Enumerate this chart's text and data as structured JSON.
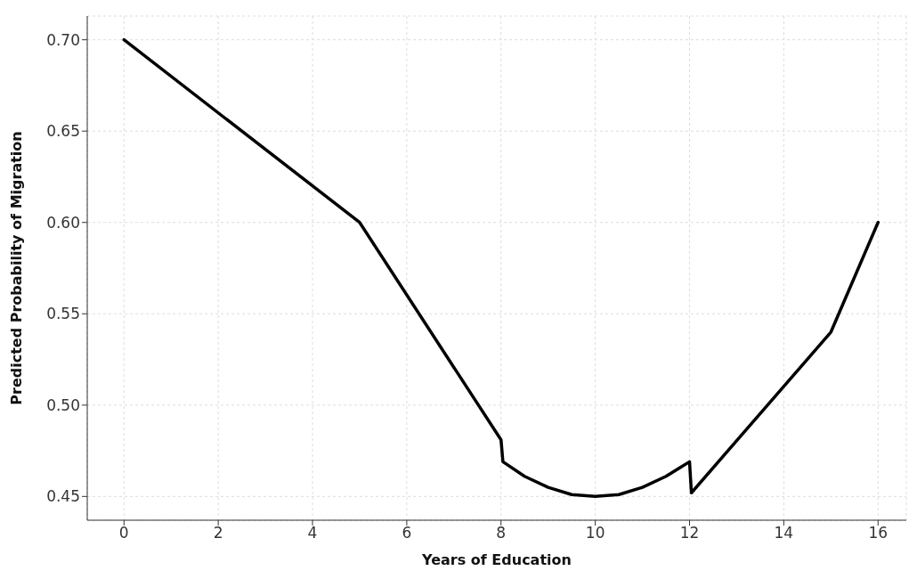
{
  "chart_data": {
    "type": "line",
    "xlabel": "Years of Education",
    "ylabel": "Predicted Probability of Migration",
    "x": [
      0,
      5,
      8,
      8.04,
      8.5,
      9,
      9.5,
      10,
      10.5,
      11,
      11.5,
      12,
      12.04,
      15,
      16
    ],
    "series": [
      {
        "color": "#000000",
        "values": [
          0.7,
          0.6,
          0.481,
          0.469,
          0.461,
          0.455,
          0.451,
          0.45,
          0.451,
          0.455,
          0.461,
          0.469,
          0.452,
          0.54,
          0.6
        ]
      }
    ],
    "xlim": [
      -0.78,
      16.6
    ],
    "xticks": [
      0,
      2,
      4,
      6,
      8,
      10,
      12,
      14,
      16
    ],
    "ylim": [
      0.437,
      0.713
    ],
    "yticks": [
      {
        "value": 0.45,
        "label": "0.45"
      },
      {
        "value": 0.5,
        "label": "0.50"
      },
      {
        "value": 0.55,
        "label": "0.55"
      },
      {
        "value": 0.6,
        "label": "0.60"
      },
      {
        "value": 0.65,
        "label": "0.65"
      },
      {
        "value": 0.7,
        "label": "0.70"
      }
    ],
    "grid": true,
    "marker": "none",
    "line_style": "solid"
  }
}
